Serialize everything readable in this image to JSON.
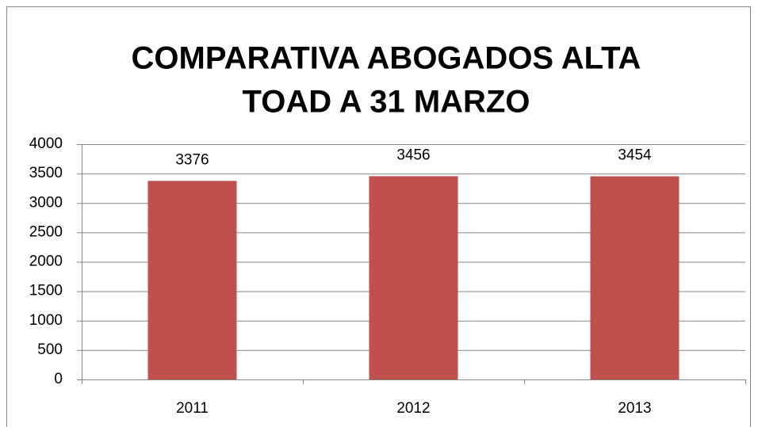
{
  "chart_data": {
    "type": "bar",
    "title": [
      "COMPARATIVA ABOGADOS ALTA",
      "TOAD A 31 MARZO"
    ],
    "categories": [
      "2011",
      "2012",
      "2013"
    ],
    "values": [
      3376,
      3456,
      3454
    ],
    "color": "#c0504d",
    "ylim": [
      0,
      4000
    ],
    "yticks": [
      0,
      500,
      1000,
      1500,
      2000,
      2500,
      3000,
      3500,
      4000
    ],
    "grid": true
  }
}
